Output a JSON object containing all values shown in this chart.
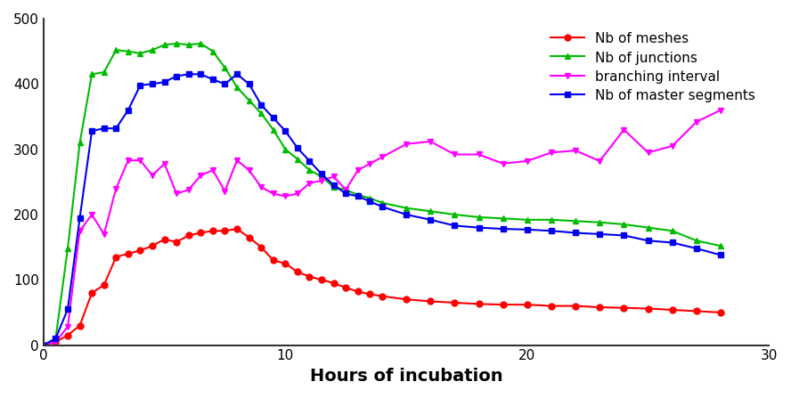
{
  "title": "",
  "xlabel": "Hours of incubation",
  "ylabel": "",
  "xlim": [
    0,
    30
  ],
  "ylim": [
    0,
    500
  ],
  "yticks": [
    0,
    100,
    200,
    300,
    400,
    500
  ],
  "xticks": [
    0,
    10,
    20,
    30
  ],
  "series": {
    "meshes": {
      "label": "Nb of meshes",
      "color": "#ff0000",
      "marker": "o",
      "x": [
        0,
        0.5,
        1,
        1.5,
        2,
        2.5,
        3,
        3.5,
        4,
        4.5,
        5,
        5.5,
        6,
        6.5,
        7,
        7.5,
        8,
        8.5,
        9,
        9.5,
        10,
        10.5,
        11,
        11.5,
        12,
        12.5,
        13,
        13.5,
        14,
        15,
        16,
        17,
        18,
        19,
        20,
        21,
        22,
        23,
        24,
        25,
        26,
        27,
        28
      ],
      "y": [
        0,
        5,
        15,
        30,
        80,
        92,
        135,
        140,
        145,
        152,
        162,
        158,
        168,
        172,
        175,
        175,
        178,
        165,
        150,
        130,
        125,
        112,
        105,
        100,
        95,
        88,
        82,
        78,
        75,
        70,
        67,
        65,
        63,
        62,
        62,
        60,
        60,
        58,
        57,
        56,
        54,
        52,
        50
      ]
    },
    "junctions": {
      "label": "Nb of junctions",
      "color": "#00bb00",
      "marker": "^",
      "x": [
        0,
        0.5,
        1,
        1.5,
        2,
        2.5,
        3,
        3.5,
        4,
        4.5,
        5,
        5.5,
        6,
        6.5,
        7,
        7.5,
        8,
        8.5,
        9,
        9.5,
        10,
        10.5,
        11,
        11.5,
        12,
        12.5,
        13,
        13.5,
        14,
        15,
        16,
        17,
        18,
        19,
        20,
        21,
        22,
        23,
        24,
        25,
        26,
        27,
        28
      ],
      "y": [
        0,
        10,
        148,
        310,
        415,
        418,
        452,
        450,
        447,
        452,
        460,
        462,
        460,
        462,
        450,
        425,
        395,
        375,
        355,
        330,
        300,
        285,
        268,
        258,
        242,
        238,
        230,
        225,
        218,
        210,
        205,
        200,
        196,
        194,
        192,
        192,
        190,
        188,
        185,
        180,
        175,
        160,
        152
      ]
    },
    "branching": {
      "label": "branching interval",
      "color": "#ff00ff",
      "marker": "v",
      "x": [
        0,
        0.5,
        1,
        1.5,
        2,
        2.5,
        3,
        3.5,
        4,
        4.5,
        5,
        5.5,
        6,
        6.5,
        7,
        7.5,
        8,
        8.5,
        9,
        9.5,
        10,
        10.5,
        11,
        11.5,
        12,
        12.5,
        13,
        13.5,
        14,
        15,
        16,
        17,
        18,
        19,
        20,
        21,
        22,
        23,
        24,
        25,
        26,
        27,
        28
      ],
      "y": [
        0,
        5,
        28,
        175,
        200,
        170,
        240,
        283,
        283,
        260,
        278,
        232,
        238,
        260,
        268,
        236,
        283,
        268,
        242,
        232,
        228,
        232,
        248,
        252,
        258,
        238,
        268,
        278,
        288,
        308,
        312,
        292,
        292,
        278,
        282,
        295,
        298,
        282,
        330,
        295,
        305,
        342,
        360
      ]
    },
    "master": {
      "label": "Nb of master segments",
      "color": "#0000ee",
      "marker": "s",
      "x": [
        0,
        0.5,
        1,
        1.5,
        2,
        2.5,
        3,
        3.5,
        4,
        4.5,
        5,
        5.5,
        6,
        6.5,
        7,
        7.5,
        8,
        8.5,
        9,
        9.5,
        10,
        10.5,
        11,
        11.5,
        12,
        12.5,
        13,
        13.5,
        14,
        15,
        16,
        17,
        18,
        19,
        20,
        21,
        22,
        23,
        24,
        25,
        26,
        27,
        28
      ],
      "y": [
        0,
        10,
        55,
        195,
        328,
        332,
        332,
        360,
        398,
        400,
        403,
        412,
        415,
        415,
        407,
        400,
        415,
        400,
        368,
        348,
        328,
        302,
        282,
        262,
        245,
        232,
        228,
        220,
        212,
        200,
        192,
        183,
        180,
        178,
        177,
        175,
        172,
        170,
        168,
        160,
        157,
        148,
        138
      ]
    }
  },
  "legend_loc": "upper right",
  "background_color": "#ffffff",
  "xlabel_fontsize": 14,
  "xlabel_fontweight": "bold",
  "legend_fontsize": 11,
  "figsize": [
    8.88,
    4.47
  ],
  "dpi": 100
}
